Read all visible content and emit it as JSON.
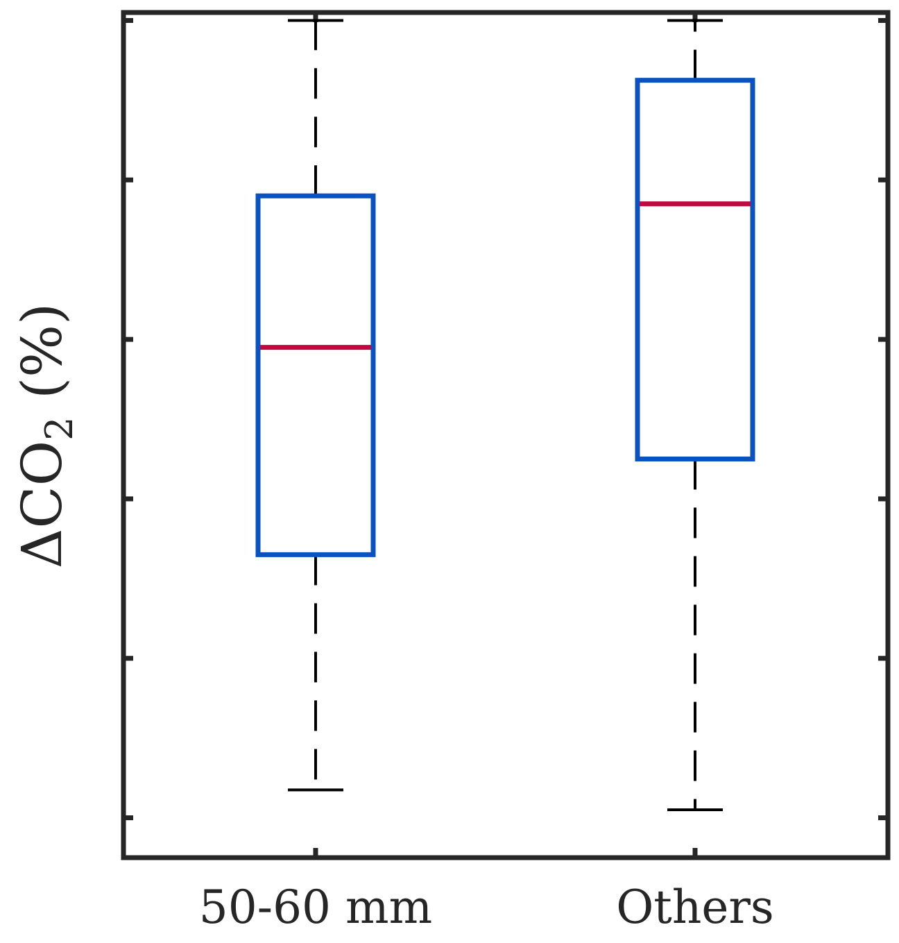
{
  "chart_data": {
    "type": "box",
    "categories": [
      "50-60 mm",
      "Others"
    ],
    "ylabel": "ΔCO",
    "ylabel_subscript": "2",
    "ylabel_suffix": " (%)",
    "ylim": [
      0,
      10.6
    ],
    "yticks": [
      0.5,
      2.5,
      4.5,
      6.5,
      8.5,
      10.5
    ],
    "y_ticklabels_shown": false,
    "boxes": [
      {
        "category": "50-60 mm",
        "whisker_low": 0.85,
        "q1": 3.8,
        "median": 6.4,
        "q3": 8.3,
        "whisker_high": 10.5
      },
      {
        "category": "Others",
        "whisker_low": 0.6,
        "q1": 5.0,
        "median": 8.2,
        "q3": 9.75,
        "whisker_high": 10.5
      }
    ],
    "grid": false,
    "legend": "none",
    "colors": {
      "box": "#0a51c2",
      "median": "#c0093f",
      "whisker": "#000000",
      "axes": "#262626"
    }
  }
}
